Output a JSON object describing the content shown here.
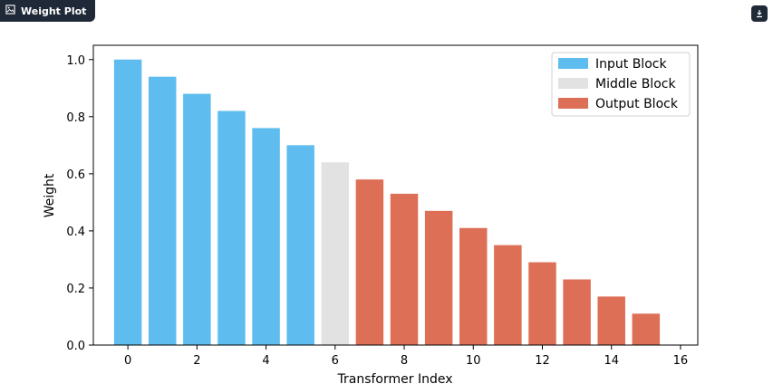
{
  "header": {
    "title": "Weight Plot",
    "icon": "image-icon"
  },
  "toolbar": {
    "download_icon": "download-icon"
  },
  "colors": {
    "input": "#5ebdee",
    "middle": "#e2e2e2",
    "output": "#dd6f57"
  },
  "chart_data": {
    "type": "bar",
    "x": [
      0,
      1,
      2,
      3,
      4,
      5,
      6,
      7,
      8,
      9,
      10,
      11,
      12,
      13,
      14,
      15
    ],
    "values": [
      1.0,
      0.94,
      0.88,
      0.82,
      0.76,
      0.7,
      0.64,
      0.58,
      0.53,
      0.47,
      0.41,
      0.35,
      0.29,
      0.23,
      0.17,
      0.11
    ],
    "groups": [
      "input",
      "input",
      "input",
      "input",
      "input",
      "input",
      "middle",
      "output",
      "output",
      "output",
      "output",
      "output",
      "output",
      "output",
      "output",
      "output"
    ],
    "xlabel": "Transformer Index",
    "ylabel": "Weight",
    "xlim": [
      -1,
      16.5
    ],
    "ylim": [
      0,
      1.05
    ],
    "xticks": [
      0,
      2,
      4,
      6,
      8,
      10,
      12,
      14,
      16
    ],
    "yticks": [
      0.0,
      0.2,
      0.4,
      0.6,
      0.8,
      1.0
    ],
    "ytick_labels": [
      "0.0",
      "0.2",
      "0.4",
      "0.6",
      "0.8",
      "1.0"
    ],
    "grid": false,
    "legend": {
      "placement": "top-right",
      "entries": [
        {
          "key": "input",
          "label": "Input Block"
        },
        {
          "key": "middle",
          "label": "Middle Block"
        },
        {
          "key": "output",
          "label": "Output Block"
        }
      ]
    }
  }
}
